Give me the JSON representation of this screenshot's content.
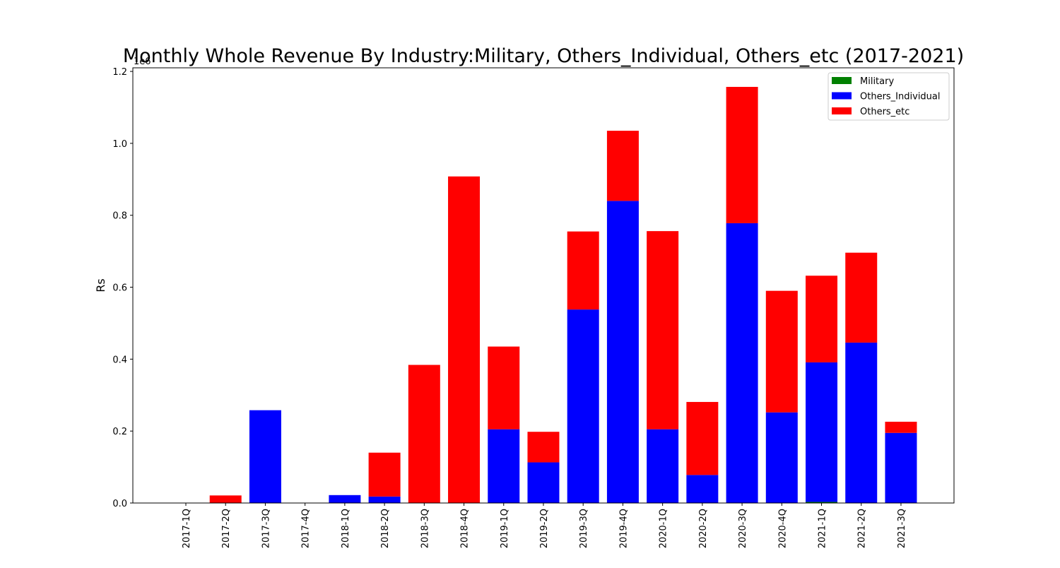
{
  "chart_data": {
    "type": "bar",
    "stacked": true,
    "title": "Monthly Whole Revenue By Industry:Military, Others_Individual, Others_etc (2017-2021)",
    "xlabel": "",
    "ylabel": "Rs",
    "y_offset_label": "1e6",
    "ylim": [
      0,
      1.21
    ],
    "y_ticks": [
      "0.0",
      "0.2",
      "0.4",
      "0.6",
      "0.8",
      "1.0",
      "1.2"
    ],
    "grid": false,
    "legend_position": "top-right",
    "categories": [
      "2017-1Q",
      "2017-2Q",
      "2017-3Q",
      "2017-4Q",
      "2018-1Q",
      "2018-2Q",
      "2018-3Q",
      "2018-4Q",
      "2019-1Q",
      "2019-2Q",
      "2019-3Q",
      "2019-4Q",
      "2020-1Q",
      "2020-2Q",
      "2020-3Q",
      "2020-4Q",
      "2021-1Q",
      "2021-2Q",
      "2021-3Q"
    ],
    "series": [
      {
        "name": "Military",
        "color": "#008000",
        "values": [
          0,
          0,
          0,
          0,
          0,
          0,
          0,
          0,
          0,
          0,
          0,
          0,
          0,
          0,
          0,
          0,
          0.003,
          0,
          0
        ]
      },
      {
        "name": "Others_Individual",
        "color": "#0000ff",
        "values": [
          0,
          0,
          0.258,
          0,
          0.022,
          0.018,
          0,
          0,
          0.205,
          0.113,
          0.538,
          0.84,
          0.205,
          0.078,
          0.778,
          0.252,
          0.388,
          0.446,
          0.195
        ]
      },
      {
        "name": "Others_etc",
        "color": "#ff0000",
        "values": [
          0,
          0.021,
          0,
          0,
          0,
          0.122,
          0.384,
          0.908,
          0.23,
          0.085,
          0.217,
          0.195,
          0.551,
          0.203,
          0.379,
          0.338,
          0.241,
          0.25,
          0.031
        ]
      }
    ]
  }
}
